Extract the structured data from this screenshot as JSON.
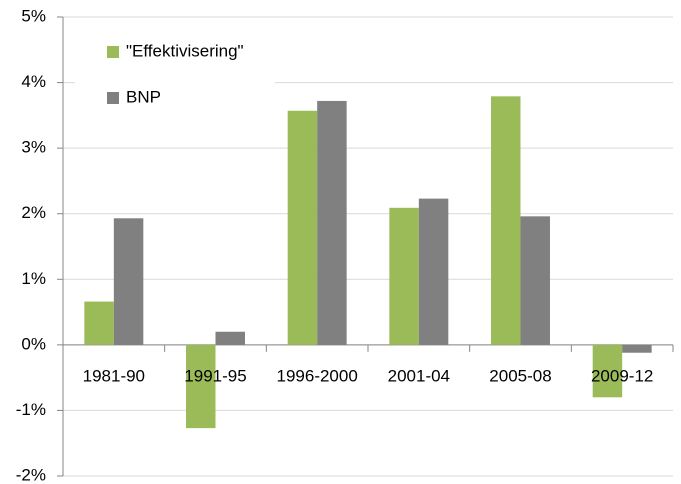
{
  "chart_data": {
    "type": "bar",
    "categories": [
      "1981-90",
      "1991-95",
      "1996-2000",
      "2001-04",
      "2005-08",
      "2009-12"
    ],
    "series": [
      {
        "name": "\"Effektivisering\"",
        "color": "#9bbb59",
        "values": [
          0.66,
          -1.27,
          3.57,
          2.09,
          3.79,
          -0.8
        ]
      },
      {
        "name": "BNP",
        "color": "#808080",
        "values": [
          1.93,
          0.2,
          3.72,
          2.23,
          1.96,
          -0.12
        ]
      }
    ],
    "ylim": [
      -2,
      5
    ],
    "yticks": [
      {
        "value": -2,
        "label": "-2%"
      },
      {
        "value": -1,
        "label": "-1%"
      },
      {
        "value": 0,
        "label": "0%"
      },
      {
        "value": 1,
        "label": "1%"
      },
      {
        "value": 2,
        "label": "2%"
      },
      {
        "value": 3,
        "label": "3%"
      },
      {
        "value": 4,
        "label": "4%"
      },
      {
        "value": 5,
        "label": "5%"
      }
    ],
    "grid": true,
    "legend": "upper left"
  }
}
